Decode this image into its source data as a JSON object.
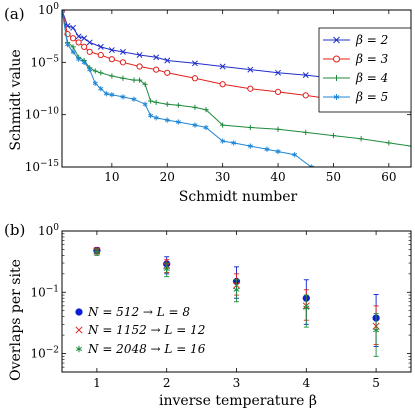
{
  "panel_a": {
    "panel_label": "(a)",
    "xlabel": "Schmidt number",
    "ylabel": "Schmidt value",
    "x_ticks": [
      "10",
      "20",
      "30",
      "40",
      "50",
      "60"
    ],
    "y_ticks": [
      "10^0",
      "10^-5",
      "10^-10",
      "10^-15"
    ],
    "legend": [
      "β = 2",
      "β = 3",
      "β = 4",
      "β = 5"
    ]
  },
  "panel_b": {
    "panel_label": "(b)",
    "xlabel": "inverse temperature β",
    "ylabel": "Overlaps per site",
    "x_ticks": [
      "1",
      "2",
      "3",
      "4",
      "5"
    ],
    "y_ticks": [
      "10^0",
      "10^-1",
      "10^-2"
    ],
    "legend": [
      "N = 512 → L = 8",
      "N = 1152 → L = 12",
      "N = 2048 → L = 16"
    ]
  },
  "colors": {
    "blue": "#1f2ecc",
    "red": "#e0201b",
    "green": "#1e8a3c",
    "cyan": "#1f86d6",
    "navy": "#0a1fd6"
  },
  "chart_data": [
    {
      "type": "line",
      "xlabel": "Schmidt number",
      "ylabel": "Schmidt value",
      "log_y": true,
      "xlim": [
        1,
        64
      ],
      "ylim": [
        1e-15,
        1
      ],
      "legend_position": "top-right",
      "grid": false,
      "series": [
        {
          "name": "β = 2",
          "color": "#1f2ecc",
          "marker": "x",
          "points": [
            [
              1,
              1
            ],
            [
              2,
              0.03
            ],
            [
              3,
              0.02
            ],
            [
              4,
              0.003
            ],
            [
              5,
              0.002
            ],
            [
              6,
              0.0008
            ],
            [
              8,
              0.0003
            ],
            [
              10,
              0.00015
            ],
            [
              12,
              0.0001
            ],
            [
              15,
              5e-05
            ],
            [
              18,
              3e-05
            ],
            [
              20,
              1.5e-05
            ],
            [
              25,
              8e-06
            ],
            [
              30,
              4e-06
            ],
            [
              35,
              2e-06
            ],
            [
              40,
              1e-06
            ],
            [
              45,
              6e-07
            ],
            [
              50,
              3e-07
            ],
            [
              55,
              1.5e-07
            ],
            [
              60,
              8e-08
            ],
            [
              64,
              5e-08
            ]
          ]
        },
        {
          "name": "β = 3",
          "color": "#e0201b",
          "marker": "o",
          "points": [
            [
              1,
              1
            ],
            [
              2,
              0.005
            ],
            [
              3,
              0.002
            ],
            [
              4,
              0.0008
            ],
            [
              5,
              0.0003
            ],
            [
              6,
              0.0001
            ],
            [
              8,
              5e-05
            ],
            [
              10,
              2e-05
            ],
            [
              12,
              1e-05
            ],
            [
              15,
              4e-06
            ],
            [
              18,
              2e-06
            ],
            [
              20,
              1e-06
            ],
            [
              25,
              3e-07
            ],
            [
              30,
              8e-08
            ],
            [
              35,
              3e-08
            ],
            [
              40,
              1.5e-08
            ],
            [
              45,
              7e-09
            ],
            [
              50,
              3e-09
            ],
            [
              55,
              1.5e-09
            ],
            [
              60,
              5e-10
            ],
            [
              64,
              3e-10
            ]
          ]
        },
        {
          "name": "β = 4",
          "color": "#1e8a3c",
          "marker": "+",
          "points": [
            [
              1,
              1
            ],
            [
              2,
              0.0008
            ],
            [
              3,
              0.0003
            ],
            [
              4,
              3e-05
            ],
            [
              5,
              1.5e-05
            ],
            [
              6,
              3e-06
            ],
            [
              7,
              1.5e-06
            ],
            [
              8,
              1e-06
            ],
            [
              10,
              5e-07
            ],
            [
              12,
              3e-07
            ],
            [
              14,
              2e-07
            ],
            [
              15,
              2e-07
            ],
            [
              16,
              8e-08
            ],
            [
              17,
              2e-09
            ],
            [
              18,
              1.5e-09
            ],
            [
              20,
              1e-09
            ],
            [
              22,
              8e-10
            ],
            [
              25,
              5e-10
            ],
            [
              27,
              3e-10
            ],
            [
              30,
              1e-11
            ],
            [
              35,
              6e-12
            ],
            [
              40,
              4e-12
            ],
            [
              45,
              2e-12
            ],
            [
              50,
              1e-12
            ],
            [
              55,
              5e-13
            ],
            [
              60,
              2e-13
            ],
            [
              64,
              1e-13
            ]
          ]
        },
        {
          "name": "β = 5",
          "color": "#1f86d6",
          "marker": "*",
          "points": [
            [
              1,
              1
            ],
            [
              2,
              0.0005
            ],
            [
              3,
              0.0001
            ],
            [
              4,
              2e-05
            ],
            [
              5,
              1e-05
            ],
            [
              6,
              2e-06
            ],
            [
              7,
              1e-07
            ],
            [
              8,
              3e-08
            ],
            [
              9,
              1e-08
            ],
            [
              10,
              8e-09
            ],
            [
              12,
              5e-09
            ],
            [
              14,
              3e-09
            ],
            [
              16,
              1e-09
            ],
            [
              17,
              8e-11
            ],
            [
              18,
              5e-11
            ],
            [
              20,
              3e-11
            ],
            [
              22,
              2e-11
            ],
            [
              25,
              1e-11
            ],
            [
              27,
              6e-12
            ],
            [
              30,
              3e-13
            ],
            [
              32,
              2e-13
            ],
            [
              35,
              1e-13
            ],
            [
              38,
              5e-14
            ],
            [
              40,
              3e-14
            ],
            [
              43,
              1.5e-14
            ],
            [
              46,
              1e-15
            ]
          ]
        }
      ]
    },
    {
      "type": "scatter",
      "xlabel": "inverse temperature β",
      "ylabel": "Overlaps per site",
      "log_y": true,
      "xlim": [
        0.5,
        5.5
      ],
      "ylim": [
        0.005,
        1
      ],
      "legend_position": "bottom-left",
      "grid": false,
      "series": [
        {
          "name": "N = 512 → L = 8",
          "color": "#0a1fd6",
          "marker": "filled-circle",
          "x": [
            1,
            2,
            3,
            4,
            5
          ],
          "y": [
            0.48,
            0.29,
            0.15,
            0.08,
            0.038
          ],
          "err_lo": [
            0.43,
            0.2,
            0.08,
            0.03,
            0.013
          ],
          "err_hi": [
            0.54,
            0.38,
            0.26,
            0.16,
            0.092
          ]
        },
        {
          "name": "N = 1152 → L = 12",
          "color": "#e0201b",
          "marker": "x",
          "x": [
            1,
            2,
            3,
            4,
            5
          ],
          "y": [
            0.47,
            0.27,
            0.13,
            0.06,
            0.028
          ],
          "err_lo": [
            0.42,
            0.21,
            0.09,
            0.035,
            0.014
          ],
          "err_hi": [
            0.53,
            0.34,
            0.2,
            0.11,
            0.06
          ]
        },
        {
          "name": "N = 2048 → L = 16",
          "color": "#1e8a3c",
          "marker": "asterisk",
          "x": [
            1,
            2,
            3,
            4,
            5
          ],
          "y": [
            0.45,
            0.24,
            0.11,
            0.056,
            0.024
          ],
          "err_lo": [
            0.4,
            0.18,
            0.07,
            0.027,
            0.009
          ],
          "err_hi": [
            0.51,
            0.3,
            0.16,
            0.09,
            0.045
          ]
        }
      ]
    }
  ]
}
